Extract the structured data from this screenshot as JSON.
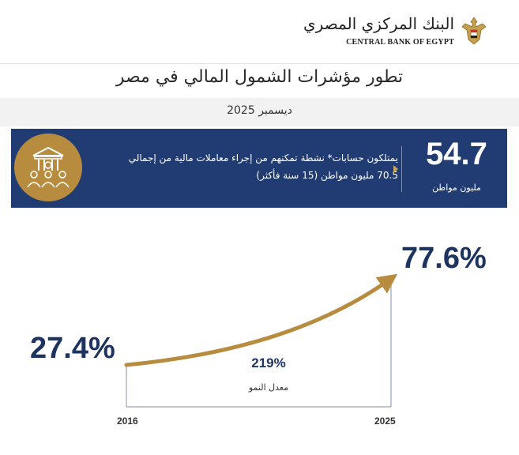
{
  "header": {
    "logo_arabic": "البنك المركزي المصري",
    "logo_english": "CENTRAL BANK OF EGYPT"
  },
  "title": "تطور مؤشرات الشمول المالي في مصر",
  "subtitle": "ديسمبر 2025",
  "banner": {
    "big_number": "54.7",
    "big_number_unit": "مليون مواطن",
    "description_line1": "يمتلكون حسابات* نشطة تمكنهم من إجراء معاملات مالية من إجمالي",
    "description_line2": "70.5 مليون مواطن (15 سنة فأكثر)",
    "icon": "bank-people-icon"
  },
  "chart_data": {
    "type": "line",
    "x": [
      "2016",
      "2025"
    ],
    "values": [
      27.4,
      77.6
    ],
    "value_labels": [
      "27.4%",
      "77.6%"
    ],
    "annotation_value": "219%",
    "annotation_label": "معدل النمو"
  },
  "colors": {
    "navy": "#213c72",
    "gold": "#b88c3f",
    "text_navy": "#1d3461"
  }
}
